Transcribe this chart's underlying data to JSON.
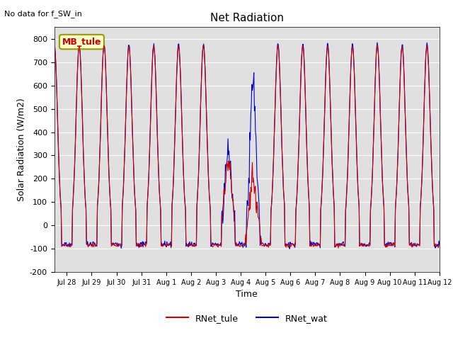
{
  "title": "Net Radiation",
  "top_left_text": "No data for f_SW_in",
  "xlabel": "Time",
  "ylabel": "Solar Radiation (W/m2)",
  "ylim": [
    -200,
    850
  ],
  "yticks": [
    -200,
    -100,
    0,
    100,
    200,
    300,
    400,
    500,
    600,
    700,
    800
  ],
  "background_color": "#e0e0e0",
  "line1_color": "#cc0000",
  "line2_color": "#0000cc",
  "legend_label1": "RNet_tule",
  "legend_label2": "RNet_wat",
  "site_label": "MB_tule",
  "site_label_bg": "#ffffcc",
  "site_label_border": "#999900",
  "x_tick_labels": [
    "Jul 28",
    "Jul 29",
    "Jul 30",
    "Jul 31",
    "Aug 1",
    "Aug 2",
    "Aug 3",
    "Aug 4",
    "Aug 5",
    "Aug 6",
    "Aug 7",
    "Aug 8",
    "Aug 9",
    "Aug 10",
    "Aug 11",
    "Aug 12"
  ],
  "num_days": 16,
  "points_per_day": 48
}
